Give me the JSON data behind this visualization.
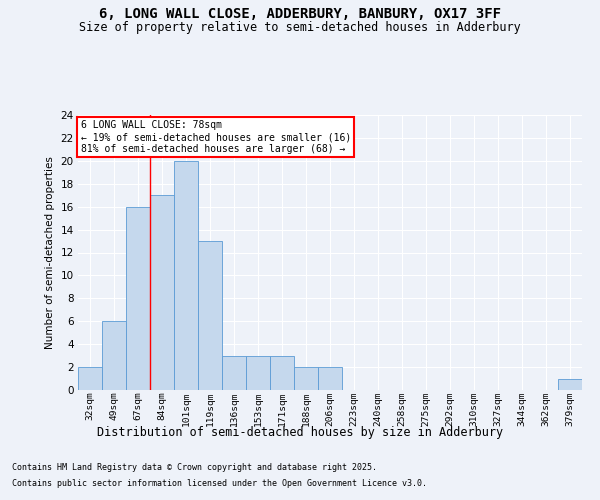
{
  "title": "6, LONG WALL CLOSE, ADDERBURY, BANBURY, OX17 3FF",
  "subtitle": "Size of property relative to semi-detached houses in Adderbury",
  "xlabel": "Distribution of semi-detached houses by size in Adderbury",
  "ylabel": "Number of semi-detached properties",
  "categories": [
    "32sqm",
    "49sqm",
    "67sqm",
    "84sqm",
    "101sqm",
    "119sqm",
    "136sqm",
    "153sqm",
    "171sqm",
    "188sqm",
    "206sqm",
    "223sqm",
    "240sqm",
    "258sqm",
    "275sqm",
    "292sqm",
    "310sqm",
    "327sqm",
    "344sqm",
    "362sqm",
    "379sqm"
  ],
  "values": [
    2,
    6,
    16,
    17,
    20,
    13,
    3,
    3,
    3,
    2,
    2,
    0,
    0,
    0,
    0,
    0,
    0,
    0,
    0,
    0,
    1
  ],
  "bar_color": "#c5d8ed",
  "bar_edge_color": "#5b9bd5",
  "red_line_x": 2.5,
  "annotation_title": "6 LONG WALL CLOSE: 78sqm",
  "annotation_line1": "← 19% of semi-detached houses are smaller (16)",
  "annotation_line2": "81% of semi-detached houses are larger (68) →",
  "ylim": [
    0,
    24
  ],
  "yticks": [
    0,
    2,
    4,
    6,
    8,
    10,
    12,
    14,
    16,
    18,
    20,
    22,
    24
  ],
  "footer1": "Contains HM Land Registry data © Crown copyright and database right 2025.",
  "footer2": "Contains public sector information licensed under the Open Government Licence v3.0.",
  "background_color": "#eef2f9",
  "grid_color": "#ffffff"
}
